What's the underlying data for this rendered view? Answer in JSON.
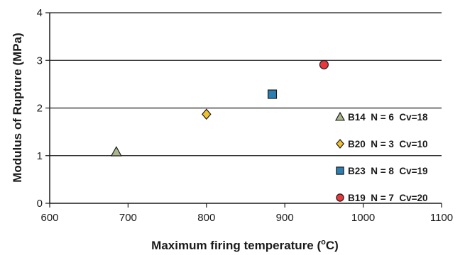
{
  "chart_data": {
    "type": "scatter",
    "xlabel": "Maximum firing temperature (",
    "xlabel_sup": "o",
    "xlabel_unit": "C)",
    "ylabel": "Modulus of Rupture (MPa)",
    "xlim": [
      600,
      1100
    ],
    "ylim": [
      0,
      4
    ],
    "xticks": [
      "600",
      "700",
      "800",
      "900",
      "1000",
      "1100"
    ],
    "yticks": [
      "0",
      "1",
      "2",
      "3",
      "4"
    ],
    "grid": "horizontal",
    "legend_position": "bottom-right",
    "series": [
      {
        "name": "B14",
        "label": "B14  N = 6  Cv=18",
        "marker": "triangle",
        "color": "#aab88e",
        "x": 685,
        "y": 1.08
      },
      {
        "name": "B20",
        "label": "B20  N = 3  Cv=10",
        "marker": "diamond",
        "color": "#f2c12e",
        "x": 800,
        "y": 1.87
      },
      {
        "name": "B23",
        "label": "B23  N = 8  Cv=19",
        "marker": "square",
        "color": "#2e7fb0",
        "x": 884,
        "y": 2.29
      },
      {
        "name": "B19",
        "label": "B19  N = 7  Cv=20",
        "marker": "circle",
        "color": "#e8383d",
        "x": 950,
        "y": 2.91
      }
    ]
  }
}
